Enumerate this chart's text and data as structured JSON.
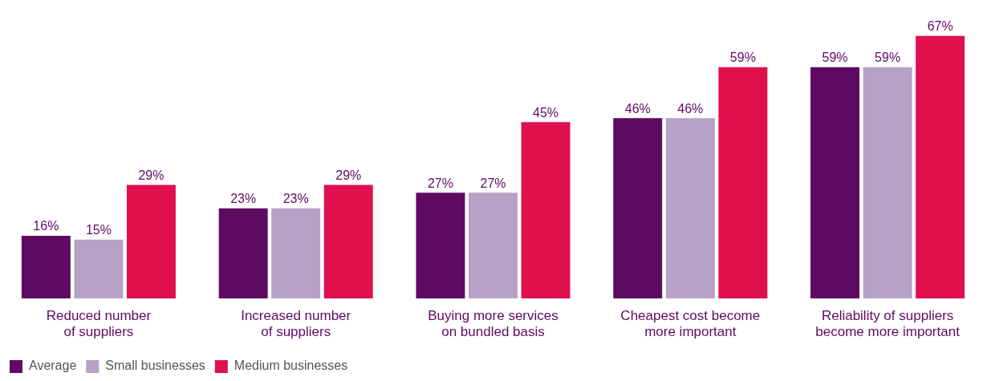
{
  "chart_data": {
    "type": "bar",
    "categories": [
      "Reduced number of suppliers",
      "Increased number of suppliers",
      "Buying more services on bundled basis",
      "Cheapest cost become more important",
      "Reliability of suppliers become more important"
    ],
    "series": [
      {
        "name": "Average",
        "color": "#5e0a62",
        "values": [
          16,
          23,
          27,
          46,
          59
        ],
        "value_labels": [
          "16%",
          "23%",
          "27%",
          "46%",
          "59%"
        ]
      },
      {
        "name": "Small businesses",
        "color": "#b6a2c6",
        "values": [
          15,
          23,
          27,
          46,
          59
        ],
        "value_labels": [
          "15%",
          "23%",
          "27%",
          "46%",
          "59%"
        ]
      },
      {
        "name": "Medium businesses",
        "color": "#e0104f",
        "values": [
          29,
          29,
          45,
          59,
          67
        ],
        "value_labels": [
          "29%",
          "29%",
          "45%",
          "59%",
          "67%"
        ]
      }
    ],
    "grid": false,
    "legend": "bottom left"
  }
}
